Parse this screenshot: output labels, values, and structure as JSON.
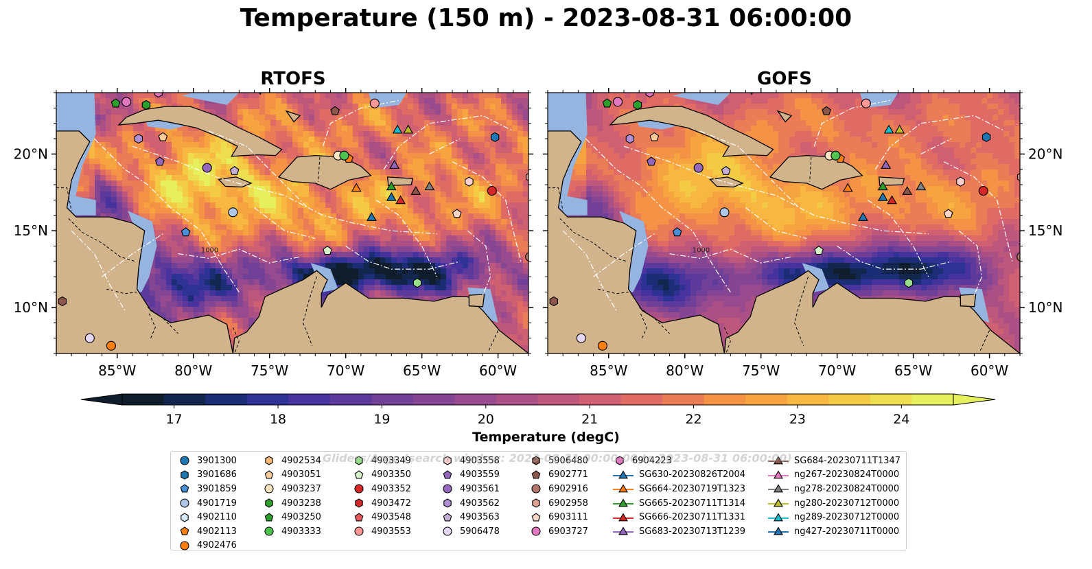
{
  "title": "Temperature (150 m) - 2023-08-31 06:00:00",
  "panels": [
    {
      "title": "RTOFS",
      "model": "rtofs"
    },
    {
      "title": "GOFS",
      "model": "gofs"
    }
  ],
  "map": {
    "lon_range": [
      -89,
      -58
    ],
    "lat_range": [
      7,
      24
    ],
    "lon_ticks": [
      "85°W",
      "80°W",
      "75°W",
      "70°W",
      "65°W",
      "60°W"
    ],
    "lat_ticks": [
      "20°N",
      "15°N",
      "10°N"
    ],
    "land_color": "#d2b48c",
    "shelf_color": "#95b4e0",
    "coastline_color": "#000000",
    "eez_color": "#ffffff",
    "isobath_label": "1000"
  },
  "colorbar": {
    "label": "Temperature (degC)",
    "min": 16.5,
    "max": 24.5,
    "step": 0.5,
    "extend": "both",
    "ticks": [
      "17",
      "18",
      "19",
      "20",
      "21",
      "22",
      "23",
      "24"
    ],
    "colormap": "thermal",
    "colors": [
      "#0f1d2d",
      "#13264d",
      "#1a2d75",
      "#2e3294",
      "#47339d",
      "#5c3a9b",
      "#703f97",
      "#844592",
      "#974a8d",
      "#ab5084",
      "#bd577b",
      "#cf6071",
      "#df6b64",
      "#ea7d55",
      "#f49346",
      "#f6a43f",
      "#f7b740",
      "#f4cb45",
      "#edde50",
      "#e6f05e"
    ]
  },
  "watermark": "Gliders/Argo (search window: 2023-08-31 00:00:00 to 2023-08-31 06:00:00)",
  "legend": [
    {
      "label": "3901300",
      "color": "#1f77b4",
      "marker": "circle"
    },
    {
      "label": "3901686",
      "color": "#1f77b4",
      "marker": "hexagon"
    },
    {
      "label": "3901859",
      "color": "#4a90d9",
      "marker": "pentagon"
    },
    {
      "label": "4901719",
      "color": "#aec7e8",
      "marker": "circle"
    },
    {
      "label": "4902110",
      "color": "#d6e9f8",
      "marker": "hexagon"
    },
    {
      "label": "4902113",
      "color": "#ff7f0e",
      "marker": "pentagon"
    },
    {
      "label": "4902476",
      "color": "#ff7f0e",
      "marker": "circle"
    },
    {
      "label": "4902534",
      "color": "#ffbb78",
      "marker": "hexagon"
    },
    {
      "label": "4903051",
      "color": "#ffcc99",
      "marker": "pentagon"
    },
    {
      "label": "4903237",
      "color": "#ffe4c4",
      "marker": "circle"
    },
    {
      "label": "4903238",
      "color": "#2ca02c",
      "marker": "hexagon"
    },
    {
      "label": "4903250",
      "color": "#2ca02c",
      "marker": "pentagon"
    },
    {
      "label": "4903333",
      "color": "#4fc24f",
      "marker": "circle"
    },
    {
      "label": "4903349",
      "color": "#98df8a",
      "marker": "hexagon"
    },
    {
      "label": "4903350",
      "color": "#d5f5c8",
      "marker": "pentagon"
    },
    {
      "label": "4903352",
      "color": "#d62728",
      "marker": "circle"
    },
    {
      "label": "4903472",
      "color": "#d62728",
      "marker": "hexagon"
    },
    {
      "label": "4903548",
      "color": "#e8575a",
      "marker": "pentagon"
    },
    {
      "label": "4903553",
      "color": "#ff9896",
      "marker": "circle"
    },
    {
      "label": "4903558",
      "color": "#ffd0d0",
      "marker": "hexagon"
    },
    {
      "label": "4903559",
      "color": "#9467bd",
      "marker": "pentagon"
    },
    {
      "label": "4903561",
      "color": "#9467bd",
      "marker": "circle"
    },
    {
      "label": "4903562",
      "color": "#b08fd6",
      "marker": "hexagon"
    },
    {
      "label": "4903563",
      "color": "#c5b0d5",
      "marker": "pentagon"
    },
    {
      "label": "5906478",
      "color": "#e6d6f5",
      "marker": "circle"
    },
    {
      "label": "5906480",
      "color": "#8c564b",
      "marker": "hexagon"
    },
    {
      "label": "6902771",
      "color": "#8c564b",
      "marker": "pentagon"
    },
    {
      "label": "6902916",
      "color": "#b07868",
      "marker": "circle"
    },
    {
      "label": "6902958",
      "color": "#e0a090",
      "marker": "hexagon"
    },
    {
      "label": "6903111",
      "color": "#fcd5c8",
      "marker": "pentagon"
    },
    {
      "label": "6903727",
      "color": "#e377c2",
      "marker": "circle"
    },
    {
      "label": "6904223",
      "color": "#e377c2",
      "marker": "hexagon"
    },
    {
      "label": "SG630-20230826T2004",
      "color": "#1f77b4",
      "marker": "triangle-line"
    },
    {
      "label": "SG664-20230719T1323",
      "color": "#ff7f0e",
      "marker": "triangle-line"
    },
    {
      "label": "SG665-20230711T1314",
      "color": "#2ca02c",
      "marker": "triangle-line"
    },
    {
      "label": "SG666-20230711T1331",
      "color": "#d62728",
      "marker": "triangle-line"
    },
    {
      "label": "SG683-20230713T1239",
      "color": "#9467bd",
      "marker": "triangle-line"
    },
    {
      "label": "SG684-20230711T1347",
      "color": "#8c564b",
      "marker": "triangle-line"
    },
    {
      "label": "ng267-20230824T0000",
      "color": "#e377c2",
      "marker": "triangle-line"
    },
    {
      "label": "ng278-20230824T0000",
      "color": "#7f7f7f",
      "marker": "triangle-line"
    },
    {
      "label": "ng280-20230712T0000",
      "color": "#bcbd22",
      "marker": "triangle-line"
    },
    {
      "label": "ng289-20230712T0000",
      "color": "#17becf",
      "marker": "triangle-line"
    },
    {
      "label": "ng427-20230711T0000",
      "color": "#1f77b4",
      "marker": "triangle-line"
    }
  ],
  "markers": [
    {
      "id": "3901686",
      "lon": -60.2,
      "lat": 21.1
    },
    {
      "id": "3901859",
      "lon": -80.5,
      "lat": 14.9
    },
    {
      "id": "4901719",
      "lon": -77.4,
      "lat": 16.2
    },
    {
      "id": "4902113",
      "lon": -69.8,
      "lat": 19.7
    },
    {
      "id": "4902476",
      "lon": -85.4,
      "lat": 7.5
    },
    {
      "id": "4903051",
      "lon": -82.0,
      "lat": 21.1
    },
    {
      "id": "4903237",
      "lon": -70.5,
      "lat": 19.9
    },
    {
      "id": "4903250",
      "lon": -85.1,
      "lat": 23.3
    },
    {
      "id": "4903238",
      "lon": -83.1,
      "lat": 23.2
    },
    {
      "id": "4903333",
      "lon": -70.1,
      "lat": 19.9
    },
    {
      "id": "4903350",
      "lon": -71.2,
      "lat": 13.7
    },
    {
      "id": "4903349",
      "lon": -65.3,
      "lat": 11.6
    },
    {
      "id": "4903352",
      "lon": -60.4,
      "lat": 17.6
    },
    {
      "id": "4903553",
      "lon": -68.1,
      "lat": 23.3
    },
    {
      "id": "4903558",
      "lon": -61.9,
      "lat": 18.2
    },
    {
      "id": "4903559",
      "lon": -82.2,
      "lat": 19.5
    },
    {
      "id": "4903561",
      "lon": -79.1,
      "lat": 19.1
    },
    {
      "id": "4903562",
      "lon": -83.6,
      "lat": 21.0
    },
    {
      "id": "4903563",
      "lon": -77.3,
      "lat": 18.9
    },
    {
      "id": "5906478",
      "lon": -86.8,
      "lat": 8.0
    },
    {
      "id": "5906480",
      "lon": -88.6,
      "lat": 10.4
    },
    {
      "id": "6902771",
      "lon": -70.7,
      "lat": 22.8
    },
    {
      "id": "6902916",
      "lon": -57.9,
      "lat": 13.3
    },
    {
      "id": "6902958",
      "lon": -57.9,
      "lat": 18.5
    },
    {
      "id": "6903111",
      "lon": -62.7,
      "lat": 16.1
    },
    {
      "id": "6903727",
      "lon": -84.4,
      "lat": 23.4
    },
    {
      "id": "6904223",
      "lon": -82.3,
      "lat": 24.0
    },
    {
      "id": "SG630-20230826T2004",
      "lon": -68.3,
      "lat": 15.9
    },
    {
      "id": "SG664-20230719T1323",
      "lon": -69.3,
      "lat": 17.8
    },
    {
      "id": "SG665-20230711T1314",
      "lon": -67.0,
      "lat": 17.9
    },
    {
      "id": "SG666-20230711T1331",
      "lon": -66.4,
      "lat": 17.0
    },
    {
      "id": "SG683-20230713T1239",
      "lon": -66.8,
      "lat": 19.3
    },
    {
      "id": "SG684-20230711T1347",
      "lon": -65.4,
      "lat": 17.6
    },
    {
      "id": "ng278-20230824T0000",
      "lon": -64.5,
      "lat": 17.9
    },
    {
      "id": "ng289-20230712T0000",
      "lon": -66.6,
      "lat": 21.6
    },
    {
      "id": "ng280-20230712T0000",
      "lon": -65.9,
      "lat": 21.6
    },
    {
      "id": "ng427-20230711T0000",
      "lon": -67.0,
      "lat": 17.2
    }
  ]
}
